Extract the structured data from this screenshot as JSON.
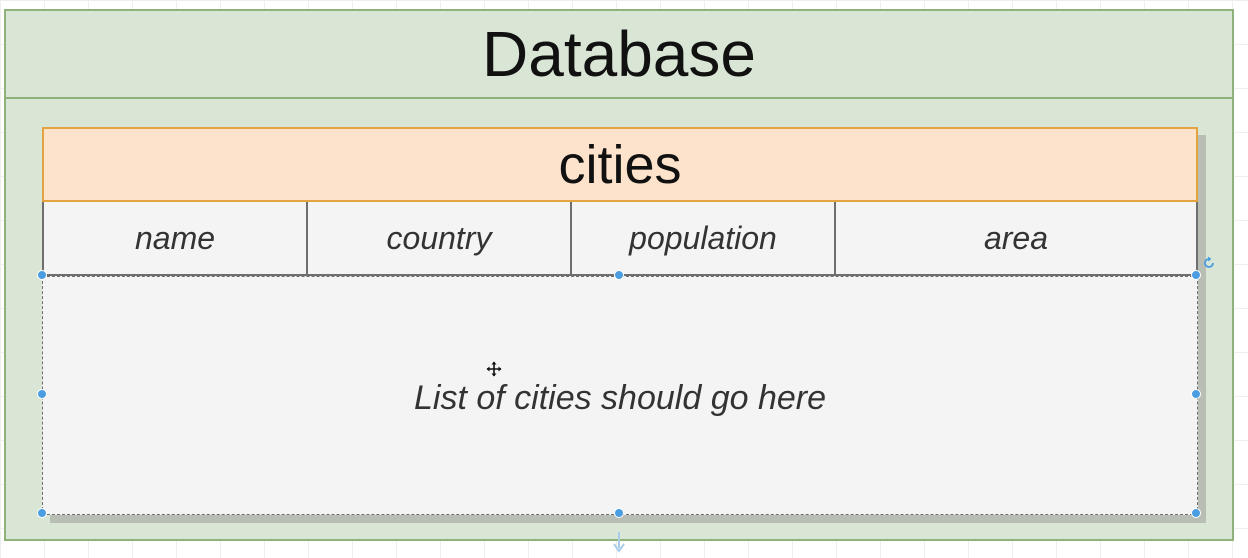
{
  "database": {
    "title": "Database"
  },
  "table": {
    "title": "cities",
    "columns": [
      "name",
      "country",
      "population",
      "area"
    ],
    "placeholder": "List of cities should go here"
  },
  "colors": {
    "database_fill": "#d9e6d5",
    "database_border": "#8fb27a",
    "table_header_fill": "#fde3cc",
    "table_header_border": "#e3a440",
    "selection_handle": "#4a9de0"
  },
  "icons": {
    "rotate": "rotate-icon",
    "move": "move-cursor-icon",
    "connector": "down-arrow-icon"
  }
}
